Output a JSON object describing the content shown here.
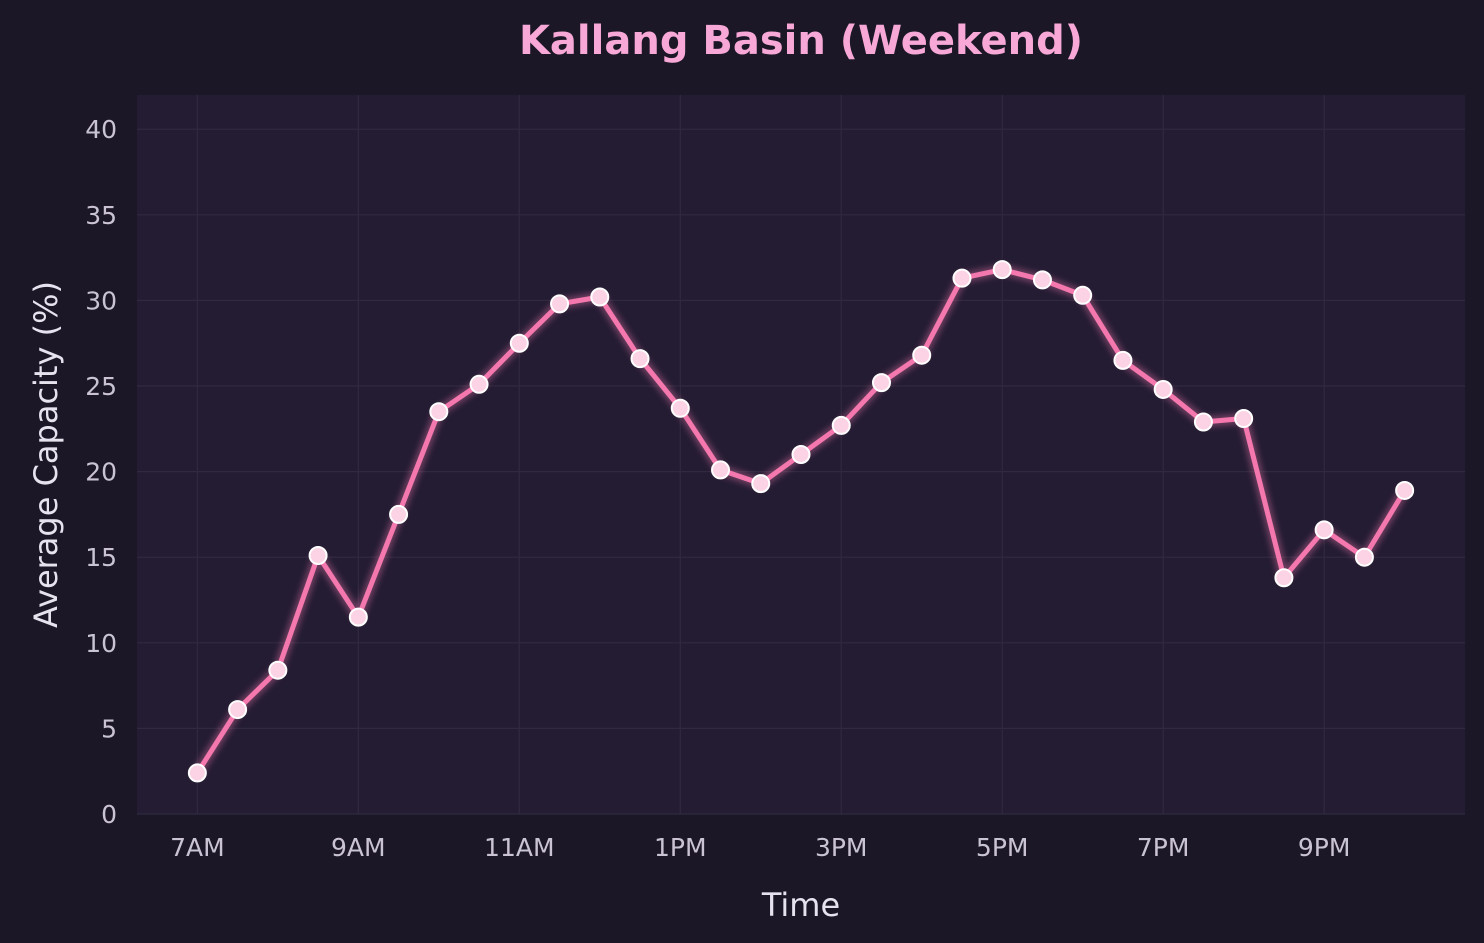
{
  "colors": {
    "page_background": "#1b1727",
    "plot_background": "#241c33",
    "grid": "#31293f",
    "title": "#f7a8d6",
    "axis_text": "#e6e2ee",
    "tick_text": "#c9c3d4",
    "line": "#f477ae",
    "line_glow": "#f477ae",
    "marker_fill": "#fbd3e5",
    "marker_edge": "#ffffff"
  },
  "chart_data": {
    "type": "line",
    "title": "Kallang Basin (Weekend)",
    "xlabel": "Time",
    "ylabel": "Average Capacity (%)",
    "x_unit": "hour of day",
    "xlim": [
      6.25,
      22.75
    ],
    "ylim": [
      0,
      42
    ],
    "x_ticks": [
      7,
      9,
      11,
      13,
      15,
      17,
      19,
      21
    ],
    "x_tick_labels": [
      "7AM",
      "9AM",
      "11AM",
      "1PM",
      "3PM",
      "5PM",
      "7PM",
      "9PM"
    ],
    "y_ticks": [
      0,
      5,
      10,
      15,
      20,
      25,
      30,
      35,
      40
    ],
    "y_tick_labels": [
      "0",
      "5",
      "10",
      "15",
      "20",
      "25",
      "30",
      "35",
      "40"
    ],
    "grid": true,
    "legend": "none",
    "series": [
      {
        "x": [
          7,
          7.5,
          8,
          8.5,
          9,
          9.5,
          10,
          10.5,
          11,
          11.5,
          12,
          12.5,
          13,
          13.5,
          14,
          14.5,
          15,
          15.5,
          16,
          16.5,
          17,
          17.5,
          18,
          18.5,
          19,
          19.5,
          20,
          20.5,
          21,
          21.5,
          22
        ],
        "values": [
          2.4,
          6.1,
          8.4,
          15.1,
          11.5,
          17.5,
          23.5,
          25.1,
          27.5,
          29.8,
          30.2,
          26.6,
          23.7,
          20.1,
          19.3,
          21.0,
          22.7,
          25.2,
          26.8,
          31.3,
          31.8,
          31.2,
          30.3,
          26.5,
          24.8,
          22.9,
          23.1,
          13.8,
          16.6,
          15.0,
          18.9
        ]
      }
    ]
  }
}
